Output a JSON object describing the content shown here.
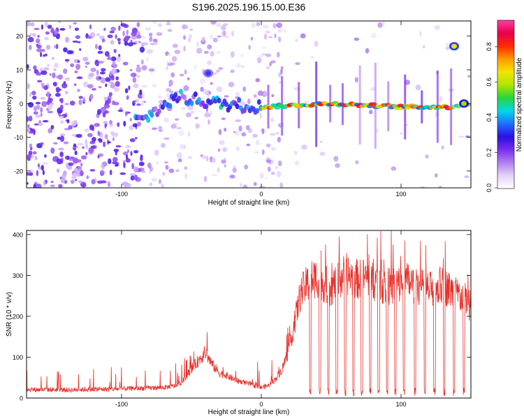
{
  "title": "S196.2025.196.15.00.E36",
  "colors": {
    "snr_line": "#e8322c",
    "colormap": [
      "#ffffff",
      "#e6d2fa",
      "#b07ff0",
      "#7a2ff0",
      "#2a10e0",
      "#1f6fff",
      "#00d9e6",
      "#27d63b",
      "#aee600",
      "#f2e600",
      "#ff9a00",
      "#ff2a00",
      "#e8004e",
      "#ff3da0"
    ]
  },
  "chart_data": [
    {
      "type": "heatmap",
      "xlabel": "Height of straight line (km)",
      "ylabel": "Frequency (Hz)",
      "xlim": [
        -168,
        150
      ],
      "ylim": [
        -25,
        24.5
      ],
      "xticks": [
        -100,
        0,
        100
      ],
      "xtick_labels": [
        "-100",
        "0",
        "100"
      ],
      "yticks": [
        -20,
        -10,
        0,
        10,
        20
      ],
      "ytick_labels": [
        "-20",
        "-10",
        "0",
        "10",
        "20"
      ],
      "colorbar": {
        "label": "Normalized spectral amplitude",
        "range": [
          0,
          0.95
        ],
        "ticks": [
          0.0,
          0.2,
          0.4,
          0.6,
          0.8
        ],
        "tick_labels": [
          "0.0",
          "0.2",
          "0.4",
          "0.6",
          "0.8"
        ]
      },
      "ridge": [
        {
          "x": -85,
          "y": -5
        },
        {
          "x": -75,
          "y": -2
        },
        {
          "x": -60,
          "y": 2
        },
        {
          "x": -45,
          "y": 1
        },
        {
          "x": -30,
          "y": 0
        },
        {
          "x": 0,
          "y": -1
        },
        {
          "x": 50,
          "y": 0
        },
        {
          "x": 100,
          "y": -1
        },
        {
          "x": 135,
          "y": -1
        },
        {
          "x": 147,
          "y": 0
        }
      ],
      "features": [
        {
          "x": 138,
          "y": 17,
          "amplitude": 0.7
        },
        {
          "x": -38,
          "y": 9,
          "amplitude": 0.35
        },
        {
          "x": 145,
          "y": 0,
          "amplitude": 0.6
        }
      ]
    },
    {
      "type": "line",
      "xlabel": "Height of straight line (km)",
      "ylabel": "SNR (10 * v/v)",
      "xlim": [
        -168,
        150
      ],
      "ylim": [
        0,
        410
      ],
      "xticks": [
        -100,
        0,
        100
      ],
      "xtick_labels": [
        "-100",
        "0",
        "100"
      ],
      "yticks": [
        0,
        100,
        200,
        300,
        400
      ],
      "ytick_labels": [
        "0",
        "100",
        "200",
        "300",
        "400"
      ],
      "grid": false,
      "series": [
        {
          "x": [
            -168,
            -160,
            -150,
            -140,
            -130,
            -120,
            -110,
            -100,
            -90,
            -80,
            -70,
            -60,
            -55,
            -50,
            -45,
            -40,
            -35,
            -30,
            -25,
            -20,
            -15,
            -10,
            -5,
            0,
            5,
            10,
            15,
            20,
            25,
            28,
            32,
            36,
            40,
            45,
            50,
            55,
            60,
            65,
            70,
            75,
            80,
            85,
            90,
            95,
            100,
            105,
            110,
            115,
            120,
            125,
            130,
            135,
            140,
            145,
            150
          ],
          "y": [
            20,
            20,
            20,
            19,
            20,
            21,
            21,
            22,
            23,
            24,
            25,
            30,
            45,
            70,
            90,
            110,
            80,
            60,
            55,
            45,
            40,
            35,
            30,
            25,
            30,
            45,
            70,
            120,
            200,
            250,
            270,
            285,
            290,
            275,
            265,
            280,
            300,
            290,
            285,
            290,
            280,
            275,
            265,
            270,
            275,
            280,
            270,
            265,
            260,
            265,
            270,
            260,
            250,
            240,
            220
          ]
        }
      ]
    }
  ]
}
